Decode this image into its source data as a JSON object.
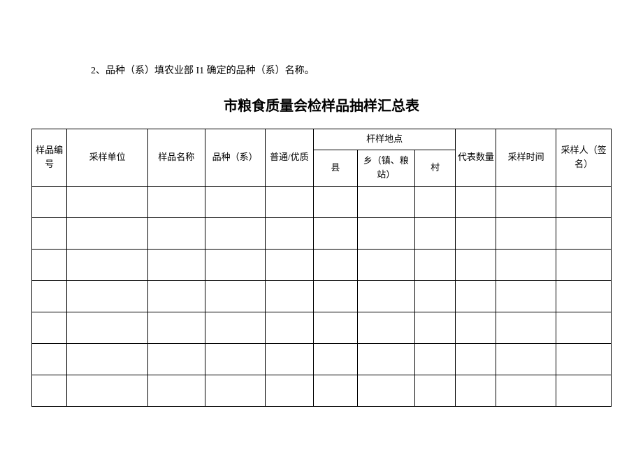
{
  "note": "2、品种（系）填农业部 I1 确定的品种（系）名称。",
  "title": "市粮食质量会检样品抽样汇总表",
  "table": {
    "headers": {
      "sample_id": "样品编号",
      "sampling_unit": "采样单位",
      "sample_name": "样品名称",
      "variety": "品种（系）",
      "quality": "普通/优质",
      "location_group": "杆样地点",
      "county": "县",
      "town": "乡（镇、粮站）",
      "village": "村",
      "quantity": "代表数量",
      "sample_time": "采样时间",
      "sampler": "采样人（签名）"
    },
    "row_count": 7,
    "border_color": "#000000",
    "background_color": "#ffffff",
    "text_color": "#000000",
    "header_fontsize": 13,
    "cell_fontsize": 13
  }
}
